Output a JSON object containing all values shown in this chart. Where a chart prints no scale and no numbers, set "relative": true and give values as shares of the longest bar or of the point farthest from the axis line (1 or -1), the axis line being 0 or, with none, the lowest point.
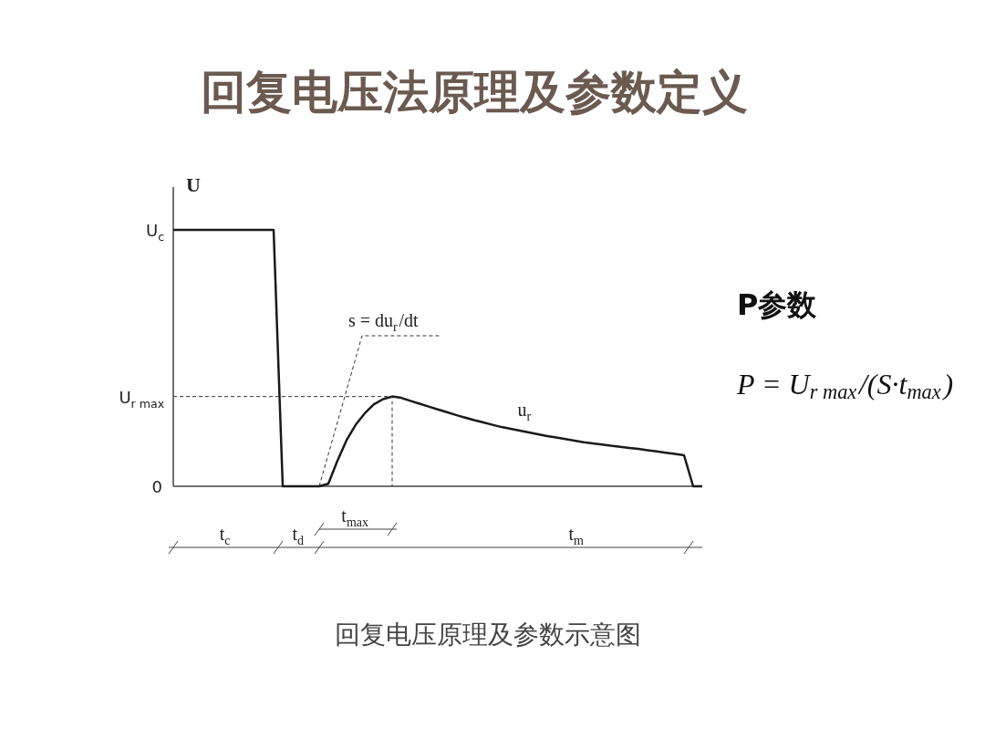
{
  "chart_data": {
    "type": "line",
    "title": "回复电压法原理及参数定义",
    "ylabel": "U",
    "relative": true,
    "categories": [
      null,
      null,
      null,
      null,
      null,
      null,
      null,
      null,
      null,
      null,
      null,
      null,
      null,
      null,
      null,
      null,
      null,
      null,
      null,
      null,
      null,
      null,
      null,
      null,
      null,
      null,
      null,
      null,
      null,
      null,
      null,
      null,
      null,
      null,
      null,
      null,
      null,
      null,
      null,
      null,
      null,
      null,
      null,
      null,
      null,
      null,
      null,
      null,
      null,
      null,
      null,
      null,
      null,
      null,
      null,
      null,
      null,
      null,
      null
    ],
    "series": [
      {
        "color": "#1a1a1a",
        "line_style": "solid",
        "values": [
          1,
          1,
          1,
          1,
          1,
          1,
          1,
          1,
          1,
          1,
          1,
          1,
          0,
          0,
          0,
          0,
          0,
          0.01,
          0.1,
          0.18,
          0.24,
          0.285,
          0.32,
          0.34,
          0.35,
          0.345,
          0.333,
          0.322,
          0.311,
          0.3,
          0.289,
          0.278,
          0.268,
          0.258,
          0.249,
          0.24,
          0.231,
          0.224,
          0.217,
          0.21,
          0.203,
          0.196,
          0.19,
          0.184,
          0.178,
          0.172,
          0.167,
          0.163,
          0.158,
          0.154,
          0.15,
          0.146,
          0.141,
          0.136,
          0.131,
          0.126,
          0.121,
          0,
          0
        ]
      }
    ],
    "annotations": [
      "U$_{c}$",
      "U$_{r max}$",
      "0",
      "s = du$_{r}$/dt",
      "u$_{r}$",
      "t$_{c}$",
      "t$_{d}$",
      "t$_{max}$",
      "t$_{m}$",
      "P参数",
      "P = U$_{r max}$/(S·t$_{max}$)",
      "回复电压原理及参数示意图"
    ]
  }
}
